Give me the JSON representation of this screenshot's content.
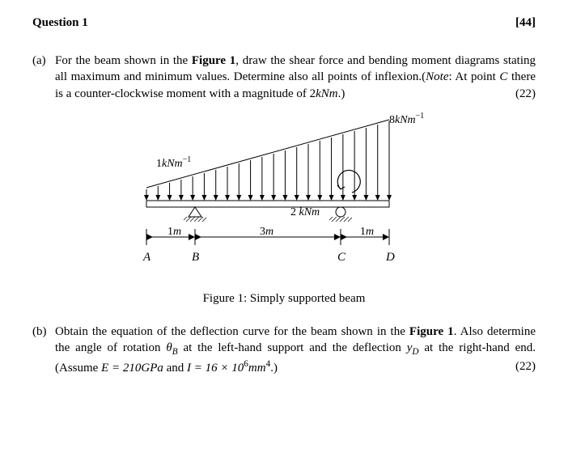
{
  "header": {
    "title": "Question 1",
    "total_marks": "[44]"
  },
  "part_a": {
    "label": "(a)",
    "text_1": "For the beam shown in the ",
    "fig_ref": "Figure 1",
    "text_2": ", draw the shear force and bending moment diagrams stating all maximum and minimum values. Determine also all points of inflexion.(",
    "note_label": "Note",
    "text_3": ": At point ",
    "point_c": "C",
    "text_4": " there is a counter-clockwise moment with a magnitude of 2",
    "unit_kNm": "kNm",
    "text_5": ".)",
    "marks": "(22)"
  },
  "part_b": {
    "label": "(b)",
    "text_1": "Obtain the equation of the deflection curve for the beam shown in the ",
    "fig_ref": "Figure 1",
    "text_2": ". Also determine the angle of rotation ",
    "theta": "θ",
    "theta_sub": "B",
    "text_3": " at the left-hand support and the deflection ",
    "y": "y",
    "y_sub": "D",
    "text_4": " at the right-hand end. (Assume ",
    "E_eq": "E = 210",
    "GPa": "GPa",
    "and": " and ",
    "I_eq": "I = 16 × 10",
    "I_exp": "6",
    "mm4": "mm",
    "mm4_exp": "4",
    "text_5": ".)",
    "marks": "(22)"
  },
  "caption": {
    "text": "Figure 1: Simply supported beam"
  },
  "figure": {
    "load_left_val": "1",
    "load_left_unit": "kNm",
    "load_right_val": "8",
    "load_right_unit": "kNm",
    "moment_val": "2",
    "moment_unit": "kNm",
    "dim_AB": "1",
    "dim_BC": "3",
    "dim_CD": "1",
    "dim_unit": "m",
    "label_A": "A",
    "label_B": "B",
    "label_C": "C",
    "label_D": "D",
    "sup_minus1": "−1",
    "colors": {
      "stroke": "#000000",
      "fill_beam": "#ffffff",
      "background": "#ffffff"
    },
    "stroke_width": 1
  }
}
